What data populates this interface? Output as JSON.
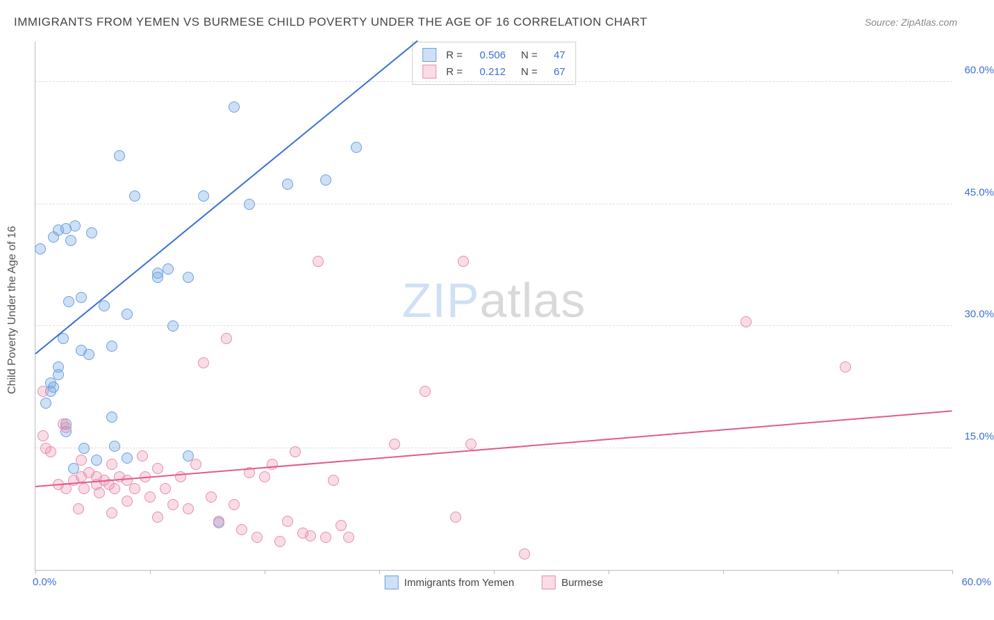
{
  "title": "IMMIGRANTS FROM YEMEN VS BURMESE CHILD POVERTY UNDER THE AGE OF 16 CORRELATION CHART",
  "source": "Source: ZipAtlas.com",
  "ylabel": "Child Poverty Under the Age of 16",
  "watermark_zip": "ZIP",
  "watermark_atlas": "atlas",
  "chart": {
    "type": "scatter",
    "xlim": [
      0,
      60
    ],
    "ylim": [
      0,
      65
    ],
    "y_gridlines": [
      15,
      30,
      45,
      60
    ],
    "y_tick_labels": [
      "15.0%",
      "30.0%",
      "45.0%",
      "60.0%"
    ],
    "x_ticks": [
      0,
      7.5,
      15,
      22.5,
      30,
      37.5,
      45,
      52.5,
      60
    ],
    "x_tick_labels": {
      "0": "0.0%",
      "60": "60.0%"
    },
    "background_color": "#ffffff",
    "grid_color": "#dddddd",
    "axis_color": "#bbbbbb",
    "marker_size": 16
  },
  "series": [
    {
      "name": "Immigrants from Yemen",
      "fill_color": "rgba(115,165,225,0.35)",
      "stroke_color": "#6b9fe0",
      "line_color": "#3a6fd8",
      "R": "0.506",
      "N": "47",
      "trend": {
        "x1": 0,
        "y1": 26.5,
        "x2": 25,
        "y2": 65
      },
      "points": [
        [
          0.3,
          39.5
        ],
        [
          0.7,
          20.5
        ],
        [
          1,
          22
        ],
        [
          1,
          23
        ],
        [
          1.2,
          22.5
        ],
        [
          1.2,
          41
        ],
        [
          1.5,
          24
        ],
        [
          1.5,
          25
        ],
        [
          1.5,
          41.8
        ],
        [
          1.8,
          28.5
        ],
        [
          2,
          17
        ],
        [
          2,
          18
        ],
        [
          2,
          42
        ],
        [
          2.2,
          33
        ],
        [
          2.3,
          40.5
        ],
        [
          2.5,
          12.5
        ],
        [
          2.6,
          42.3
        ],
        [
          3,
          27
        ],
        [
          3,
          33.5
        ],
        [
          3.2,
          15
        ],
        [
          3.5,
          26.5
        ],
        [
          3.7,
          41.5
        ],
        [
          4,
          13.5
        ],
        [
          4.5,
          32.5
        ],
        [
          5,
          18.8
        ],
        [
          5,
          27.5
        ],
        [
          5.2,
          15.2
        ],
        [
          5.5,
          51
        ],
        [
          6,
          31.5
        ],
        [
          6,
          13.8
        ],
        [
          6.5,
          46
        ],
        [
          8,
          36.5
        ],
        [
          8,
          36
        ],
        [
          8.7,
          37
        ],
        [
          9,
          30
        ],
        [
          10,
          36
        ],
        [
          10,
          14
        ],
        [
          11,
          46
        ],
        [
          12,
          5.8
        ],
        [
          13,
          57
        ],
        [
          14,
          45
        ],
        [
          16.5,
          47.5
        ],
        [
          19,
          48
        ],
        [
          21,
          52
        ]
      ]
    },
    {
      "name": "Burmese",
      "fill_color": "rgba(235,140,170,0.30)",
      "stroke_color": "#e58fac",
      "line_color": "#e15a8a",
      "R": "0.212",
      "N": "67",
      "trend": {
        "x1": 0,
        "y1": 10.2,
        "x2": 60,
        "y2": 19.5
      },
      "points": [
        [
          0.5,
          22
        ],
        [
          0.5,
          16.5
        ],
        [
          0.7,
          15
        ],
        [
          1,
          14.5
        ],
        [
          1.5,
          10.5
        ],
        [
          1.8,
          18
        ],
        [
          2,
          17.5
        ],
        [
          2,
          10
        ],
        [
          2.5,
          11
        ],
        [
          2.8,
          7.5
        ],
        [
          3,
          13.5
        ],
        [
          3,
          11.5
        ],
        [
          3.2,
          10
        ],
        [
          3.5,
          12
        ],
        [
          4,
          10.5
        ],
        [
          4,
          11.5
        ],
        [
          4.2,
          9.5
        ],
        [
          4.5,
          11
        ],
        [
          4.8,
          10.5
        ],
        [
          5,
          13
        ],
        [
          5,
          7
        ],
        [
          5.2,
          10
        ],
        [
          5.5,
          11.5
        ],
        [
          6,
          8.5
        ],
        [
          6,
          11
        ],
        [
          6.5,
          10
        ],
        [
          7,
          14
        ],
        [
          7.2,
          11.5
        ],
        [
          7.5,
          9
        ],
        [
          8,
          12.5
        ],
        [
          8,
          6.5
        ],
        [
          8.5,
          10
        ],
        [
          9,
          8
        ],
        [
          9.5,
          11.5
        ],
        [
          10,
          7.5
        ],
        [
          10.5,
          13
        ],
        [
          11,
          25.5
        ],
        [
          11.5,
          9
        ],
        [
          12,
          6
        ],
        [
          12.5,
          28.5
        ],
        [
          13,
          8
        ],
        [
          13.5,
          5
        ],
        [
          14,
          12
        ],
        [
          14.5,
          4
        ],
        [
          15,
          11.5
        ],
        [
          15.5,
          13
        ],
        [
          16,
          3.5
        ],
        [
          16.5,
          6
        ],
        [
          17,
          14.5
        ],
        [
          17.5,
          4.5
        ],
        [
          18,
          4.2
        ],
        [
          18.5,
          38
        ],
        [
          19,
          4
        ],
        [
          19.5,
          11
        ],
        [
          20,
          5.5
        ],
        [
          20.5,
          4
        ],
        [
          23.5,
          15.5
        ],
        [
          25.5,
          22
        ],
        [
          27.5,
          6.5
        ],
        [
          28,
          38
        ],
        [
          28.5,
          15.5
        ],
        [
          32,
          2
        ],
        [
          46.5,
          30.5
        ],
        [
          53,
          25
        ]
      ]
    }
  ],
  "legend_top": {
    "r_label": "R =",
    "n_label": "N ="
  }
}
